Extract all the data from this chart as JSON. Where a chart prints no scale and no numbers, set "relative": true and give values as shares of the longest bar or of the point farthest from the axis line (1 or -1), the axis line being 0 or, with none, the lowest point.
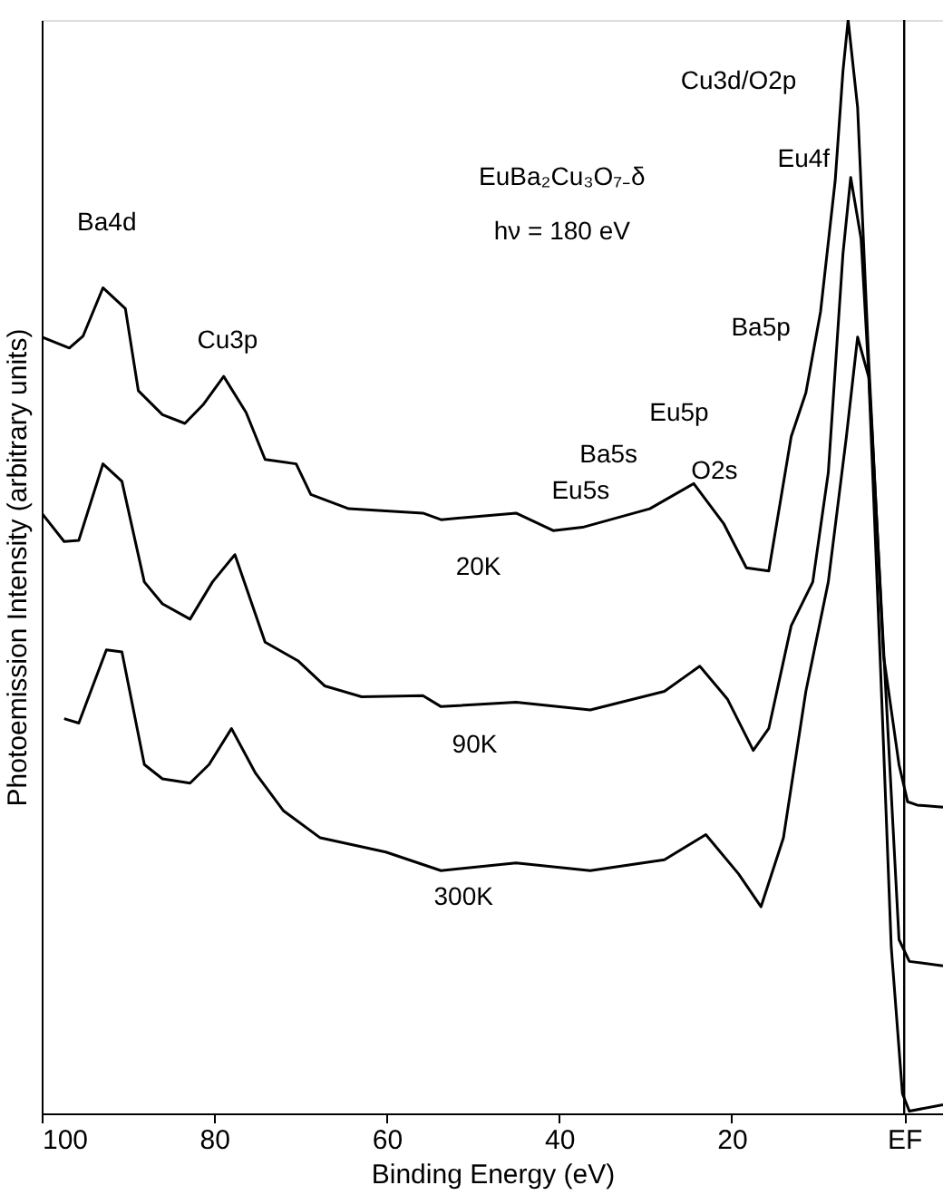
{
  "chart_data": {
    "type": "line",
    "relative": true,
    "xlabel": "Binding Energy (eV)",
    "ylabel": "Photoemission Intensity (arbitrary units)",
    "xlim": [
      100,
      -4.5
    ],
    "xticks": [
      100,
      80,
      60,
      40,
      20,
      {
        "value": 0,
        "label": "EF"
      }
    ],
    "grid": false,
    "marker": "none",
    "line_style": "solid",
    "ref_lines": [
      {
        "axis": "x",
        "value": 0,
        "color": "#000000"
      }
    ],
    "series": [
      {
        "color": "#000000",
        "x": [
          100,
          96.8,
          95.2,
          92.9,
          90.3,
          88.8,
          86,
          83.4,
          81.3,
          78.9,
          76.3,
          74.1,
          70.5,
          68.8,
          64.4,
          55.8,
          53.7,
          45,
          40.7,
          37.3,
          29.5,
          24.4,
          20.9,
          18.3,
          15.7,
          13.1,
          11.4,
          9.7,
          8.0,
          7.1,
          6.5,
          5.4,
          4.1,
          2.4,
          0.6,
          -0.4,
          -1.5,
          -4.5
        ],
        "values": [
          0.71,
          0.7,
          0.711,
          0.755,
          0.736,
          0.661,
          0.639,
          0.631,
          0.648,
          0.674,
          0.641,
          0.598,
          0.594,
          0.566,
          0.553,
          0.549,
          0.543,
          0.549,
          0.533,
          0.536,
          0.553,
          0.576,
          0.539,
          0.499,
          0.496,
          0.619,
          0.659,
          0.733,
          0.853,
          0.953,
          1,
          0.92,
          0.686,
          0.419,
          0.319,
          0.285,
          0.282,
          0.28
        ]
      },
      {
        "color": "#000000",
        "x": [
          100,
          97.4,
          95.7,
          92.9,
          90.7,
          88.1,
          86,
          82.8,
          80.2,
          77.6,
          74.1,
          70.3,
          67.2,
          62.9,
          55.8,
          53.7,
          45,
          36.4,
          27.8,
          23.7,
          20.5,
          17.5,
          15.7,
          13.1,
          10.6,
          8.8,
          7.1,
          6.2,
          5.0,
          3.7,
          1.9,
          0.6,
          -0.6,
          -4.5
        ],
        "values": [
          0.549,
          0.523,
          0.524,
          0.594,
          0.578,
          0.486,
          0.466,
          0.452,
          0.486,
          0.511,
          0.431,
          0.414,
          0.391,
          0.381,
          0.382,
          0.372,
          0.376,
          0.369,
          0.386,
          0.409,
          0.379,
          0.332,
          0.352,
          0.446,
          0.486,
          0.586,
          0.786,
          0.856,
          0.8,
          0.619,
          0.352,
          0.159,
          0.139,
          0.135
        ]
      },
      {
        "color": "#000000",
        "x": [
          97.4,
          95.7,
          92.5,
          90.7,
          88.1,
          86,
          82.8,
          80.6,
          78,
          75.2,
          72,
          67.7,
          60.1,
          53.7,
          45,
          36.4,
          27.8,
          23,
          19.2,
          16.6,
          14,
          11.4,
          8.8,
          6.7,
          5.4,
          4.1,
          2.8,
          1.5,
          0.2,
          -0.6,
          -4.5
        ],
        "values": [
          0.361,
          0.357,
          0.424,
          0.422,
          0.319,
          0.306,
          0.302,
          0.319,
          0.352,
          0.311,
          0.277,
          0.252,
          0.239,
          0.222,
          0.229,
          0.222,
          0.232,
          0.255,
          0.219,
          0.189,
          0.252,
          0.386,
          0.486,
          0.619,
          0.71,
          0.673,
          0.419,
          0.152,
          0.018,
          0.002,
          0.008
        ]
      }
    ],
    "annotations": [
      "EuBa₂Cu₃O₇₋δ",
      "hν = 180 eV",
      "Ba4d",
      "Cu3p",
      "Eu5s",
      "Ba5s",
      "Eu5p",
      "O2s",
      "Ba5p",
      "Eu4f",
      "Cu3d/O2p",
      "20K",
      "90K",
      "300K"
    ]
  }
}
